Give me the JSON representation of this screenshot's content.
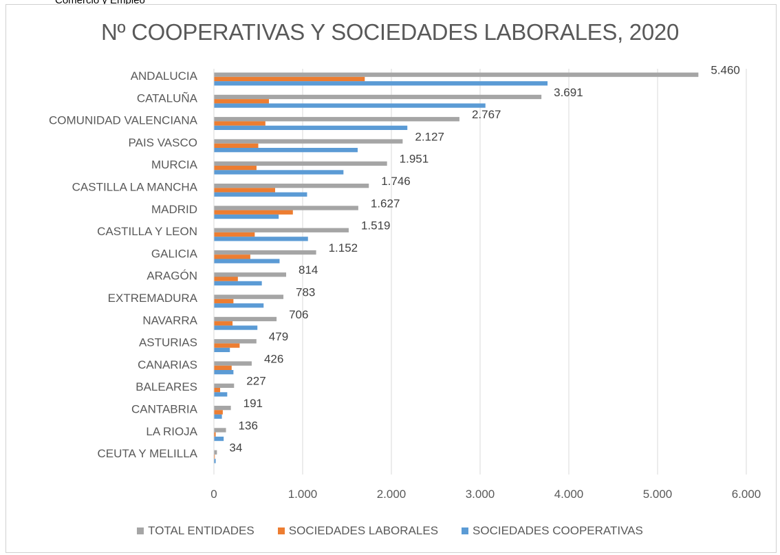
{
  "header": {
    "note": "Comercio y Empleo"
  },
  "chart_data": {
    "type": "bar",
    "orientation": "horizontal",
    "title": "Nº COOPERATIVAS Y SOCIEDADES LABORALES, 2020",
    "xlabel": "",
    "ylabel": "",
    "xlim": [
      0,
      6000
    ],
    "x_ticks": [
      "0",
      "1.000",
      "2.000",
      "3.000",
      "4.000",
      "5.000",
      "6.000"
    ],
    "grid": "vertical",
    "legend_position": "bottom",
    "categories": [
      "ANDALUCIA",
      "CATALUÑA",
      "COMUNIDAD VALENCIANA",
      "PAIS VASCO",
      "MURCIA",
      "CASTILLA LA MANCHA",
      "MADRID",
      "CASTILLA Y LEON",
      "GALICIA",
      "ARAGÓN",
      "EXTREMADURA",
      "NAVARRA",
      "ASTURIAS",
      "CANARIAS",
      "BALEARES",
      "CANTABRIA",
      "LA RIOJA",
      "CEUTA Y MELILLA"
    ],
    "series": [
      {
        "name": "TOTAL ENTIDADES",
        "color": "#a5a5a5",
        "values": [
          5460,
          3691,
          2767,
          2127,
          1951,
          1746,
          1627,
          1519,
          1152,
          814,
          783,
          706,
          479,
          426,
          227,
          191,
          136,
          34
        ],
        "data_labels": [
          "5.460",
          "3.691",
          "2.767",
          "2.127",
          "1.951",
          "1.746",
          "1.627",
          "1.519",
          "1.152",
          "814",
          "783",
          "706",
          "479",
          "426",
          "227",
          "191",
          "136",
          "34"
        ]
      },
      {
        "name": "SOCIEDADES LABORALES",
        "color": "#ed7d31",
        "values": [
          1700,
          620,
          580,
          500,
          480,
          690,
          890,
          460,
          410,
          270,
          220,
          210,
          290,
          200,
          70,
          100,
          20,
          10
        ]
      },
      {
        "name": "SOCIEDADES COOPERATIVAS",
        "color": "#5b9bd5",
        "values": [
          3760,
          3060,
          2180,
          1620,
          1460,
          1050,
          730,
          1060,
          740,
          540,
          560,
          490,
          180,
          220,
          150,
          90,
          110,
          20
        ]
      }
    ]
  }
}
